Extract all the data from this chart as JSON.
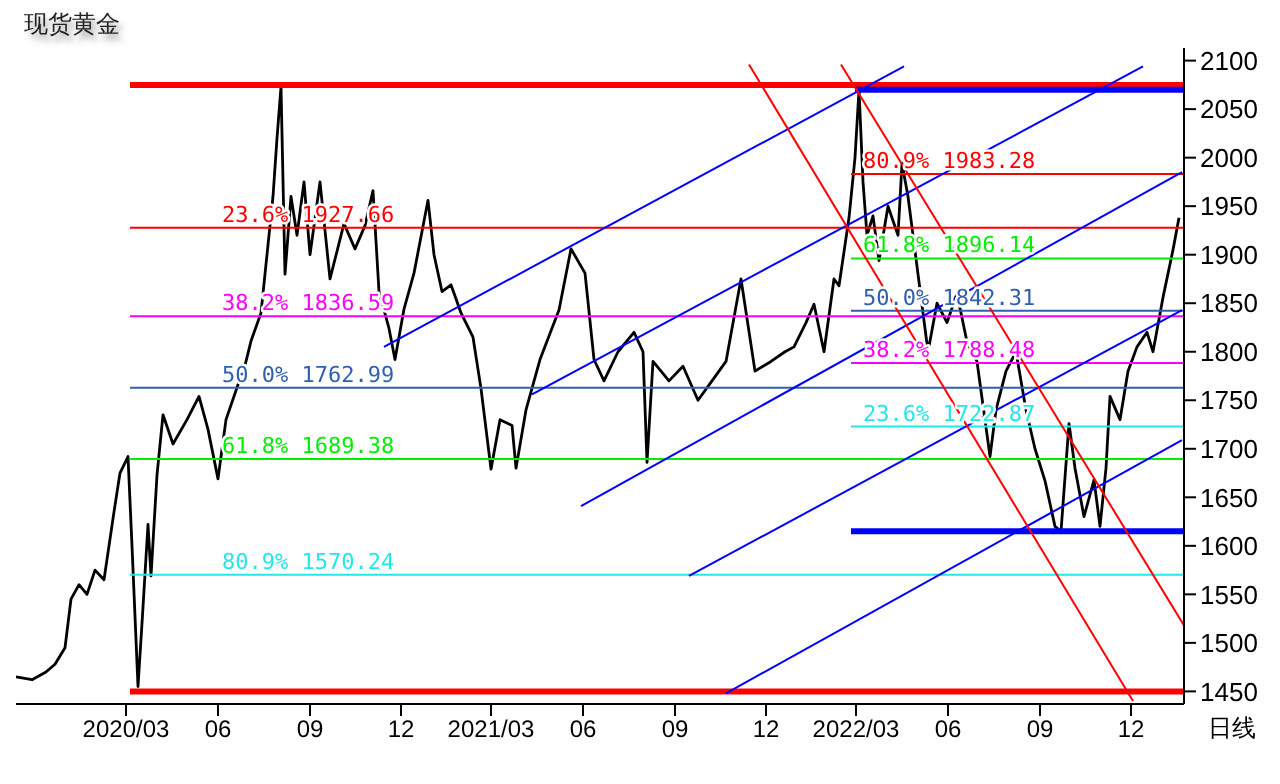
{
  "chart_data": {
    "type": "line",
    "title": "现货黄金",
    "xlim": [
      "2019-11-12",
      "2023-01-23"
    ],
    "xticks": [
      {
        "value": "2020-03-01",
        "label": "2020/03"
      },
      {
        "value": "2020-06-01",
        "label": "06"
      },
      {
        "value": "2020-09-01",
        "label": "09"
      },
      {
        "value": "2020-12-01",
        "label": "12"
      },
      {
        "value": "2021-03-01",
        "label": "2021/03"
      },
      {
        "value": "2021-06-01",
        "label": "06"
      },
      {
        "value": "2021-09-01",
        "label": "09"
      },
      {
        "value": "2021-12-01",
        "label": "12"
      },
      {
        "value": "2022-03-01",
        "label": "2022/03"
      },
      {
        "value": "2022-06-01",
        "label": "06"
      },
      {
        "value": "2022-09-01",
        "label": "09"
      },
      {
        "value": "2022-12-01",
        "label": "12"
      }
    ],
    "ylim": [
      1437,
      2113
    ],
    "yticks": [
      1450,
      1500,
      1550,
      1600,
      1650,
      1700,
      1750,
      1800,
      1850,
      1900,
      1950,
      2000,
      2050,
      2100
    ],
    "series": [
      {
        "type": "line",
        "color": "#000000",
        "x": [
          "2019-11-12",
          "2019-11-28",
          "2019-12-12",
          "2019-12-21",
          "2019-12-31",
          "2020-01-06",
          "2020-01-14",
          "2020-01-22",
          "2020-01-30",
          "2020-02-08",
          "2020-02-18",
          "2020-02-24",
          "2020-03-03",
          "2020-03-07",
          "2020-03-13",
          "2020-03-17",
          "2020-03-23",
          "2020-03-26",
          "2020-04-01",
          "2020-04-07",
          "2020-04-17",
          "2020-05-01",
          "2020-05-13",
          "2020-05-22",
          "2020-06-01",
          "2020-06-09",
          "2020-06-19",
          "2020-06-29",
          "2020-07-04",
          "2020-07-14",
          "2020-07-20",
          "2020-07-26",
          "2020-07-30",
          "2020-08-03",
          "2020-08-07",
          "2020-08-13",
          "2020-08-19",
          "2020-08-26",
          "2020-09-01",
          "2020-09-11",
          "2020-09-21",
          "2020-10-05",
          "2020-10-16",
          "2020-10-26",
          "2020-11-03",
          "2020-11-09",
          "2020-11-19",
          "2020-11-25",
          "2020-12-04",
          "2020-12-14",
          "2020-12-28",
          "2021-01-03",
          "2021-01-11",
          "2021-01-20",
          "2021-01-30",
          "2021-02-11",
          "2021-02-19",
          "2021-03-01",
          "2021-03-10",
          "2021-03-22",
          "2021-03-26",
          "2021-04-05",
          "2021-04-19",
          "2021-05-08",
          "2021-05-20",
          "2021-06-03",
          "2021-06-12",
          "2021-06-22",
          "2021-07-06",
          "2021-07-22",
          "2021-07-31",
          "2021-08-04",
          "2021-08-10",
          "2021-08-26",
          "2021-09-09",
          "2021-09-24",
          "2021-10-08",
          "2021-10-22",
          "2021-11-06",
          "2021-11-20",
          "2021-12-06",
          "2021-12-20",
          "2021-12-29",
          "2022-01-10",
          "2022-01-18",
          "2022-01-28",
          "2022-02-07",
          "2022-02-12",
          "2022-02-22",
          "2022-02-28",
          "2022-03-04",
          "2022-03-08",
          "2022-03-12",
          "2022-03-18",
          "2022-03-24",
          "2022-04-02",
          "2022-04-12",
          "2022-04-16",
          "2022-04-22",
          "2022-05-02",
          "2022-05-12",
          "2022-05-21",
          "2022-05-31",
          "2022-06-10",
          "2022-06-20",
          "2022-06-30",
          "2022-07-13",
          "2022-07-19",
          "2022-07-29",
          "2022-08-08",
          "2022-08-18",
          "2022-08-27",
          "2022-09-06",
          "2022-09-16",
          "2022-09-22",
          "2022-09-30",
          "2022-10-06",
          "2022-10-15",
          "2022-10-25",
          "2022-10-31",
          "2022-11-06",
          "2022-11-10",
          "2022-11-20",
          "2022-11-28",
          "2022-12-07",
          "2022-12-17",
          "2022-12-23",
          "2023-01-02",
          "2023-01-12",
          "2023-01-18"
        ],
        "values": [
          1465,
          1462,
          1470,
          1478,
          1495,
          1545,
          1560,
          1550,
          1575,
          1565,
          1635,
          1675,
          1692,
          1600,
          1455,
          1520,
          1622,
          1569,
          1673,
          1735,
          1705,
          1730,
          1754,
          1720,
          1669,
          1730,
          1760,
          1790,
          1811,
          1840,
          1900,
          1960,
          2020,
          2073,
          1880,
          1960,
          1920,
          1975,
          1900,
          1975,
          1875,
          1932,
          1906,
          1930,
          1966,
          1862,
          1824,
          1792,
          1844,
          1881,
          1956,
          1900,
          1862,
          1869,
          1840,
          1815,
          1762,
          1679,
          1730,
          1724,
          1680,
          1740,
          1792,
          1843,
          1906,
          1881,
          1792,
          1770,
          1800,
          1820,
          1800,
          1686,
          1790,
          1770,
          1785,
          1750,
          1770,
          1790,
          1875,
          1780,
          1790,
          1800,
          1805,
          1830,
          1849,
          1800,
          1875,
          1868,
          1938,
          2000,
          2070,
          1975,
          1920,
          1940,
          1894,
          1950,
          1920,
          1994,
          1960,
          1880,
          1800,
          1850,
          1830,
          1860,
          1810,
          1790,
          1692,
          1740,
          1780,
          1800,
          1740,
          1700,
          1667,
          1620,
          1615,
          1726,
          1680,
          1630,
          1668,
          1620,
          1680,
          1754,
          1730,
          1780,
          1805,
          1820,
          1800,
          1856,
          1905,
          1938
        ]
      },
      {
        "type": "line",
        "color": "#ff0000",
        "x": [
          "2020-03-05",
          "2023-01-23"
        ],
        "values": [
          2075,
          2075
        ]
      },
      {
        "type": "line",
        "color": "#ff0000",
        "x": [
          "2020-03-05",
          "2023-01-23"
        ],
        "values": [
          1450,
          1450
        ]
      },
      {
        "type": "line",
        "color": "#ff0000",
        "x": [
          "2020-03-05",
          "2023-01-23"
        ],
        "values": [
          1927.66,
          1927.66
        ]
      },
      {
        "type": "line",
        "color": "#ff00ff",
        "x": [
          "2020-03-05",
          "2023-01-23"
        ],
        "values": [
          1836.59,
          1836.59
        ]
      },
      {
        "type": "line",
        "color": "#2f5faf",
        "x": [
          "2020-03-05",
          "2023-01-23"
        ],
        "values": [
          1762.99,
          1762.99
        ]
      },
      {
        "type": "line",
        "color": "#00ee00",
        "x": [
          "2020-03-05",
          "2023-01-23"
        ],
        "values": [
          1689.38,
          1689.38
        ]
      },
      {
        "type": "line",
        "color": "#22e8e8",
        "x": [
          "2020-03-05",
          "2023-01-23"
        ],
        "values": [
          1570.24,
          1570.24
        ]
      },
      {
        "type": "line",
        "color": "#0000ff",
        "x": [
          "2022-02-28",
          "2023-01-23"
        ],
        "values": [
          2070,
          2070
        ]
      },
      {
        "type": "line",
        "color": "#0000ff",
        "x": [
          "2022-02-24",
          "2023-01-23"
        ],
        "values": [
          1615,
          1615
        ]
      },
      {
        "type": "line",
        "color": "#ff0000",
        "x": [
          "2022-02-24",
          "2023-01-23"
        ],
        "values": [
          1983.28,
          1983.28
        ]
      },
      {
        "type": "line",
        "color": "#00ee00",
        "x": [
          "2022-02-24",
          "2023-01-23"
        ],
        "values": [
          1896.14,
          1896.14
        ]
      },
      {
        "type": "line",
        "color": "#2f5faf",
        "x": [
          "2022-02-24",
          "2023-01-23"
        ],
        "values": [
          1842.31,
          1842.31
        ]
      },
      {
        "type": "line",
        "color": "#ff00ff",
        "x": [
          "2022-02-24",
          "2023-01-23"
        ],
        "values": [
          1788.48,
          1788.48
        ]
      },
      {
        "type": "line",
        "color": "#22e8e8",
        "x": [
          "2022-02-24",
          "2023-01-23"
        ],
        "values": [
          1722.87,
          1722.87
        ]
      },
      {
        "type": "line",
        "color": "#0000ff",
        "x": [
          "2020-11-14",
          "2022-04-18"
        ],
        "values": [
          1805,
          2094
        ]
      },
      {
        "type": "line",
        "color": "#0000ff",
        "x": [
          "2021-04-11",
          "2022-12-13"
        ],
        "values": [
          1756,
          2094
        ]
      },
      {
        "type": "line",
        "color": "#0000ff",
        "x": [
          "2021-05-30",
          "2023-01-21"
        ],
        "values": [
          1641,
          1985
        ]
      },
      {
        "type": "line",
        "color": "#0000ff",
        "x": [
          "2021-09-15",
          "2023-01-21"
        ],
        "values": [
          1569,
          1843
        ]
      },
      {
        "type": "line",
        "color": "#0000ff",
        "x": [
          "2021-10-22",
          "2023-01-21"
        ],
        "values": [
          1448,
          1709
        ]
      },
      {
        "type": "line",
        "color": "#ff0000",
        "x": [
          "2021-11-14",
          "2022-12-03"
        ],
        "values": [
          2096,
          1440
        ]
      },
      {
        "type": "line",
        "color": "#ff0000",
        "x": [
          "2022-02-14",
          "2023-01-23"
        ],
        "values": [
          2096,
          1518
        ]
      }
    ],
    "annotations": [
      {
        "text": "23.6%  1927.66",
        "x": "2020-06-05",
        "y": 1927.66
      },
      {
        "text": "38.2%  1836.59",
        "x": "2020-06-05",
        "y": 1836.59
      },
      {
        "text": "50.0%  1762.99",
        "x": "2020-06-05",
        "y": 1762.99
      },
      {
        "text": "61.8%  1689.38",
        "x": "2020-06-05",
        "y": 1689.38
      },
      {
        "text": "80.9%  1570.24",
        "x": "2020-06-05",
        "y": 1570.24
      },
      {
        "text": "80.9%  1983.28",
        "x": "2022-03-08",
        "y": 1983.28
      },
      {
        "text": "61.8%  1896.14",
        "x": "2022-03-08",
        "y": 1896.14
      },
      {
        "text": "50.0%  1842.31",
        "x": "2022-03-08",
        "y": 1842.31
      },
      {
        "text": "38.2%  1788.48",
        "x": "2022-03-08",
        "y": 1788.48
      },
      {
        "text": "23.6%  1722.87",
        "x": "2022-03-08",
        "y": 1722.87
      },
      "日线"
    ]
  }
}
